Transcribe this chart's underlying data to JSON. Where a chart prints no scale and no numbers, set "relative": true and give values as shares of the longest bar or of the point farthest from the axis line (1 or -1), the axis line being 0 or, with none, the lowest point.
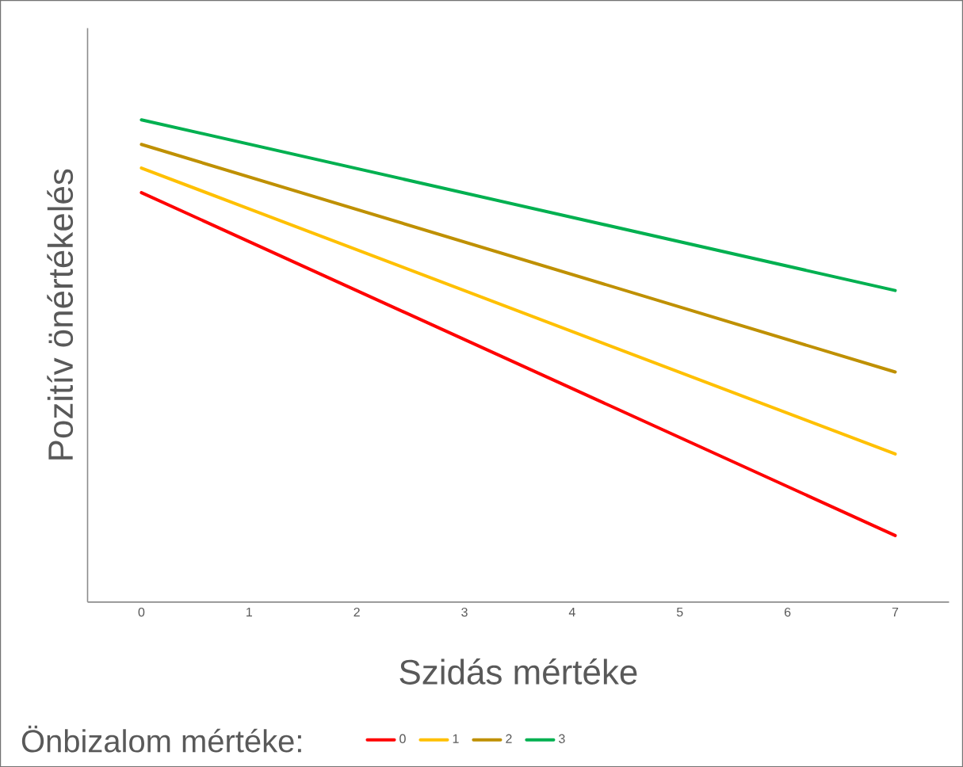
{
  "chart_data": {
    "type": "line",
    "xlabel": "Szidás mértéke",
    "ylabel": "Pozitív önértékelés",
    "legend_title": "Önbizalom mértéke:",
    "legend": "bottom",
    "relative": true,
    "grid": false,
    "xlim": [
      -0.5,
      7.5
    ],
    "xticks": [
      0,
      1,
      2,
      3,
      4,
      5,
      6,
      7
    ],
    "x": [
      0,
      7
    ],
    "series": [
      {
        "name": "0",
        "color": "#ff0000",
        "values": [
          0.849,
          0.138
        ]
      },
      {
        "name": "1",
        "color": "#ffc000",
        "values": [
          0.9,
          0.307
        ]
      },
      {
        "name": "2",
        "color": "#bf9000",
        "values": [
          0.949,
          0.477
        ]
      },
      {
        "name": "3",
        "color": "#00b050",
        "values": [
          1,
          0.646
        ]
      }
    ]
  }
}
